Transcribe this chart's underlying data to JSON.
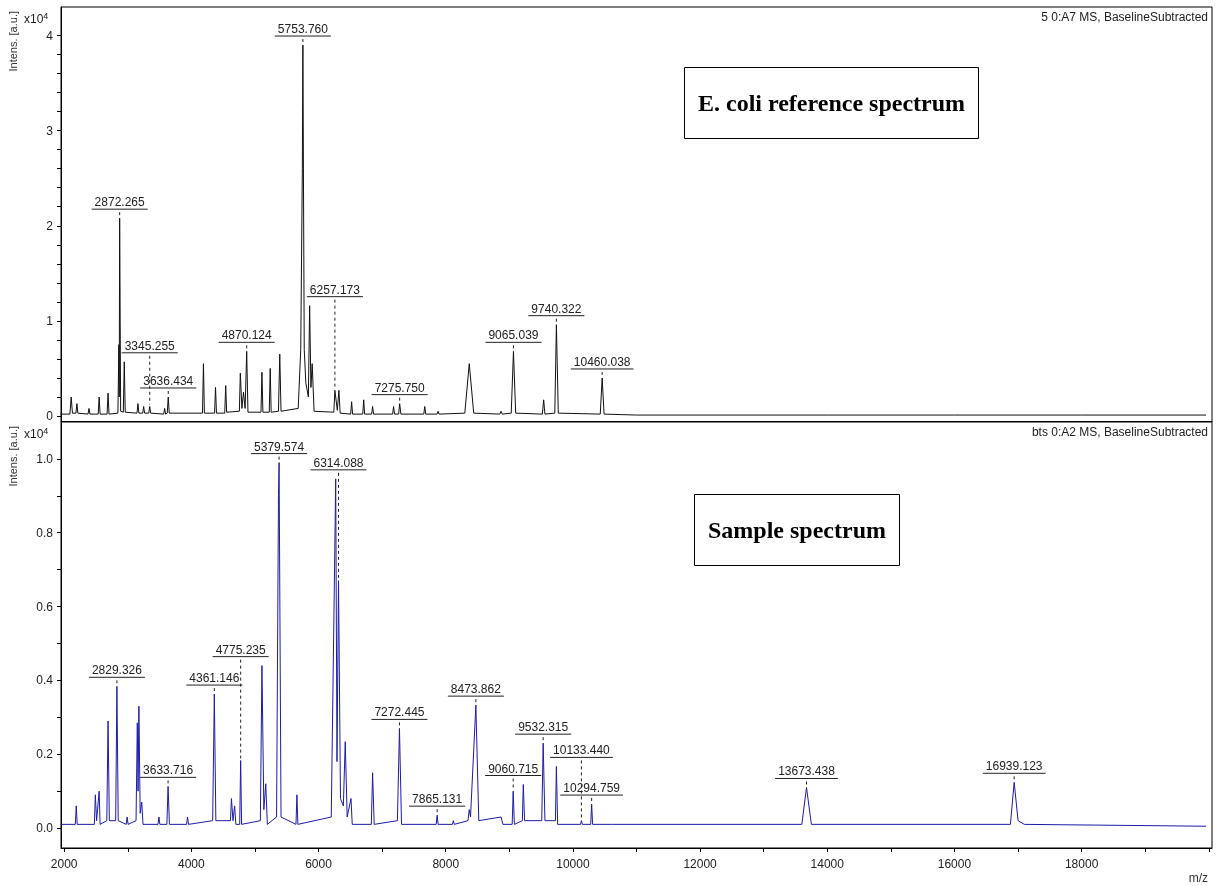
{
  "chart_data": [
    {
      "type": "line",
      "title": "E. coli reference spectrum",
      "ylabel": "Intens. [a.u.]",
      "marker": "none",
      "line_style": "solid",
      "tick_labels": "y",
      "xlim": [
        1950,
        20050
      ],
      "ylim": [
        -0.06,
        4.3
      ],
      "yticks": [
        0,
        {
          "value": 0.2,
          "label": null
        },
        {
          "value": 0.4,
          "label": null
        },
        {
          "value": 0.6,
          "label": null
        },
        {
          "value": 0.8,
          "label": null
        },
        1,
        {
          "value": 1.2,
          "label": null
        },
        {
          "value": 1.4,
          "label": null
        },
        {
          "value": 1.6,
          "label": null
        },
        {
          "value": 1.8,
          "label": null
        },
        2,
        {
          "value": 2.2,
          "label": null
        },
        {
          "value": 2.4,
          "label": null
        },
        {
          "value": 2.6,
          "label": null
        },
        {
          "value": 2.8,
          "label": null
        },
        3,
        {
          "value": 3.2,
          "label": null
        },
        {
          "value": 3.4,
          "label": null
        },
        {
          "value": 3.6,
          "label": null
        },
        {
          "value": 3.8,
          "label": null
        },
        4
      ],
      "series": [
        {
          "color": "#111111",
          "x": [
            1950,
            2090,
            2110,
            2130,
            2185,
            2200,
            2215,
            2375,
            2390,
            2405,
            2535,
            2550,
            2565,
            2675,
            2690,
            2705,
            2845,
            2860,
            2866,
            2872.265,
            2888,
            2930,
            2945,
            2960,
            3145,
            3160,
            3175,
            3235,
            3250,
            3265,
            3330,
            3345.255,
            3360,
            3565,
            3580,
            3595,
            3621,
            3636.434,
            3652,
            4175,
            4190,
            4205,
            4365,
            4380,
            4395,
            4525,
            4540,
            4555,
            4755,
            4770,
            4795,
            4820,
            4845,
            4870.124,
            4890,
            5095,
            5110,
            5125,
            5225,
            5240,
            5255,
            5370,
            5390,
            5410,
            5680,
            5720,
            5745,
            5753.76,
            5775,
            5800,
            5840,
            5860,
            5880,
            5900,
            5930,
            6240,
            6257.173,
            6295,
            6320,
            6340,
            6505,
            6520,
            6535,
            6695,
            6710,
            6725,
            6835,
            6850,
            6865,
            7165,
            7180,
            7195,
            7260,
            7275.75,
            7295,
            7655,
            7670,
            7685,
            7865,
            7880,
            7895,
            8300,
            8370,
            8440,
            8850,
            8870,
            8890,
            9030,
            9065.039,
            9100,
            9520,
            9540,
            9560,
            9715,
            9740.322,
            9770,
            10430,
            10460.038,
            10490,
            11000,
            12000,
            14000,
            16000,
            18000,
            19950
          ],
          "values": [
            0.02,
            0.02,
            0.2,
            0.03,
            0.03,
            0.13,
            0.03,
            0.02,
            0.08,
            0.02,
            0.02,
            0.2,
            0.02,
            0.02,
            0.24,
            0.02,
            0.03,
            0.75,
            0.2,
            2.08,
            0.05,
            0.04,
            0.57,
            0.04,
            0.03,
            0.13,
            0.03,
            0.03,
            0.1,
            0.03,
            0.03,
            0.1,
            0.03,
            0.02,
            0.08,
            0.02,
            0.03,
            0.2,
            0.03,
            0.03,
            0.55,
            0.03,
            0.03,
            0.3,
            0.03,
            0.03,
            0.32,
            0.04,
            0.05,
            0.45,
            0.08,
            0.25,
            0.08,
            0.68,
            0.04,
            0.04,
            0.46,
            0.04,
            0.04,
            0.5,
            0.04,
            0.05,
            0.65,
            0.05,
            0.08,
            0.7,
            2.6,
            3.9,
            0.7,
            0.35,
            0.2,
            1.16,
            0.3,
            0.55,
            0.05,
            0.04,
            0.27,
            0.06,
            0.27,
            0.03,
            0.02,
            0.15,
            0.02,
            0.02,
            0.17,
            0.02,
            0.02,
            0.1,
            0.02,
            0.02,
            0.1,
            0.02,
            0.02,
            0.13,
            0.02,
            0.02,
            0.1,
            0.02,
            0.02,
            0.05,
            0.02,
            0.03,
            0.55,
            0.03,
            0.02,
            0.05,
            0.02,
            0.03,
            0.68,
            0.03,
            0.02,
            0.17,
            0.02,
            0.03,
            0.96,
            0.03,
            0.02,
            0.4,
            0.02,
            0.01,
            0.01,
            0.01,
            0.01,
            0.01,
            0.01
          ]
        }
      ],
      "annotations": [
        "x10$^{4}$",
        "5 0:A7 MS, BaselineSubtracted",
        {
          "text": "5753.760",
          "x": 5753.76,
          "y": 3.9
        },
        {
          "text": "2872.265",
          "x": 2872.265,
          "y": 2.08
        },
        {
          "text": "3345.255",
          "x": 3345.255,
          "y": 0.1
        },
        {
          "text": "3636.434",
          "x": 3636.434,
          "y": 0.2
        },
        {
          "text": "4870.124",
          "x": 4870.124,
          "y": 0.68
        },
        {
          "text": "6257.173",
          "x": 6257.173,
          "y": 0.27
        },
        {
          "text": "7275.750",
          "x": 7275.75,
          "y": 0.13
        },
        {
          "text": "9065.039",
          "x": 9065.039,
          "y": 0.68
        },
        {
          "text": "9740.322",
          "x": 9740.322,
          "y": 0.96
        },
        {
          "text": "10460.038",
          "x": 10460.038,
          "y": 0.4
        }
      ]
    },
    {
      "type": "line",
      "title": "Sample spectrum",
      "xlabel": "m/z",
      "ylabel": "Intens. [a.u.]",
      "marker": "none",
      "line_style": "solid",
      "xlim": [
        1950,
        20050
      ],
      "ylim": [
        -0.054,
        1.1
      ],
      "xticks": [
        2000,
        {
          "value": 3000,
          "label": null
        },
        4000,
        {
          "value": 5000,
          "label": null
        },
        6000,
        {
          "value": 7000,
          "label": null
        },
        8000,
        {
          "value": 9000,
          "label": null
        },
        10000,
        {
          "value": 11000,
          "label": null
        },
        12000,
        {
          "value": 13000,
          "label": null
        },
        14000,
        {
          "value": 15000,
          "label": null
        },
        16000,
        {
          "value": 17000,
          "label": null
        },
        18000,
        {
          "value": 19000,
          "label": null
        },
        {
          "value": 20000,
          "label": null
        }
      ],
      "yticks": [
        {
          "value": 0,
          "label": "0.0"
        },
        {
          "value": 0.1,
          "label": null
        },
        0.2,
        {
          "value": 0.3,
          "label": null
        },
        0.4,
        {
          "value": 0.5,
          "label": null
        },
        0.6,
        {
          "value": 0.7,
          "label": null
        },
        0.8,
        {
          "value": 0.9,
          "label": null
        },
        {
          "value": 1,
          "label": "1.0"
        }
      ],
      "series": [
        {
          "color": "#1c1ca8",
          "x": [
            1950,
            2175,
            2190,
            2205,
            2475,
            2490,
            2510,
            2550,
            2565,
            2670,
            2690,
            2710,
            2810,
            2829.326,
            2850,
            2975,
            2990,
            3005,
            3130,
            3150,
            3162,
            3175,
            3195,
            3220,
            3240,
            3475,
            3490,
            3505,
            3615,
            3633.716,
            3655,
            3925,
            3940,
            3955,
            4335,
            4361.146,
            4385,
            4615,
            4630,
            4655,
            4680,
            4700,
            4760,
            4775.235,
            4790,
            5085,
            5110,
            5140,
            5170,
            5195,
            5340,
            5370,
            5379.574,
            5410,
            5645,
            5660,
            5675,
            6200,
            6240,
            6270,
            6290,
            6314.088,
            6345,
            6390,
            6420,
            6450,
            6510,
            6530,
            6830,
            6850,
            6875,
            7240,
            7272.445,
            7305,
            7850,
            7865.131,
            7880,
            8105,
            8120,
            8135,
            8350,
            8370,
            8390,
            8473.862,
            8520,
            8870,
            8900,
            9045,
            9060.715,
            9080,
            9205,
            9220,
            9240,
            9510,
            9532.315,
            9560,
            9725,
            9740,
            9760,
            10120,
            10133.44,
            10150,
            10280,
            10294.759,
            10310,
            10620,
            13600,
            13673.438,
            13750,
            16880,
            16939.123,
            17000,
            17100,
            19950
          ],
          "values": [
            0.01,
            0.01,
            0.06,
            0.01,
            0.01,
            0.09,
            0.02,
            0.1,
            0.01,
            0.02,
            0.29,
            0.02,
            0.02,
            0.384,
            0.02,
            0.01,
            0.03,
            0.01,
            0.02,
            0.285,
            0.1,
            0.33,
            0.04,
            0.07,
            0.01,
            0.01,
            0.03,
            0.01,
            0.01,
            0.113,
            0.01,
            0.01,
            0.03,
            0.01,
            0.02,
            0.363,
            0.02,
            0.02,
            0.08,
            0.02,
            0.06,
            0.01,
            0.01,
            0.183,
            0.01,
            0.02,
            0.44,
            0.05,
            0.12,
            0.01,
            0.03,
            0.9,
            0.99,
            0.03,
            0.01,
            0.09,
            0.01,
            0.03,
            0.55,
            0.946,
            0.18,
            0.67,
            0.08,
            0.06,
            0.234,
            0.03,
            0.08,
            0.01,
            0.01,
            0.15,
            0.01,
            0.02,
            0.27,
            0.01,
            0.01,
            0.035,
            0.01,
            0.01,
            0.02,
            0.01,
            0.02,
            0.05,
            0.03,
            0.333,
            0.02,
            0.03,
            0.01,
            0.01,
            0.1,
            0.01,
            0.02,
            0.118,
            0.02,
            0.02,
            0.23,
            0.02,
            0.02,
            0.167,
            0.01,
            0.01,
            0.02,
            0.01,
            0.01,
            0.065,
            0.01,
            0.01,
            0.01,
            0.11,
            0.01,
            0.01,
            0.124,
            0.02,
            0.01,
            0.005
          ]
        }
      ],
      "annotations": [
        "x10$^{4}$",
        "bts 0:A2 MS, BaselineSubtracted",
        {
          "text": "5379.574",
          "x": 5379.574,
          "y": 0.99
        },
        {
          "text": "6314.088",
          "x": 6314.088,
          "y": 0.67
        },
        {
          "text": "2829.326",
          "x": 2829.326,
          "y": 0.384
        },
        {
          "text": "4361.146",
          "x": 4361.146,
          "y": 0.363
        },
        {
          "text": "4775.235",
          "x": 4775.235,
          "y": 0.183
        },
        {
          "text": "3633.716",
          "x": 3633.716,
          "y": 0.113
        },
        {
          "text": "7272.445",
          "x": 7272.445,
          "y": 0.27
        },
        {
          "text": "7865.131",
          "x": 7865.131,
          "y": 0.035
        },
        {
          "text": "8473.862",
          "x": 8473.862,
          "y": 0.333
        },
        {
          "text": "9060.715",
          "x": 9060.715,
          "y": 0.1
        },
        {
          "text": "9532.315",
          "x": 9532.315,
          "y": 0.23
        },
        {
          "text": "10133.440",
          "x": 10133.44,
          "y": 0.02
        },
        {
          "text": "10294.759",
          "x": 10294.759,
          "y": 0.065
        },
        {
          "text": "13673.438",
          "x": 13673.438,
          "y": 0.11
        },
        {
          "text": "16939.123",
          "x": 16939.123,
          "y": 0.124
        }
      ]
    }
  ]
}
